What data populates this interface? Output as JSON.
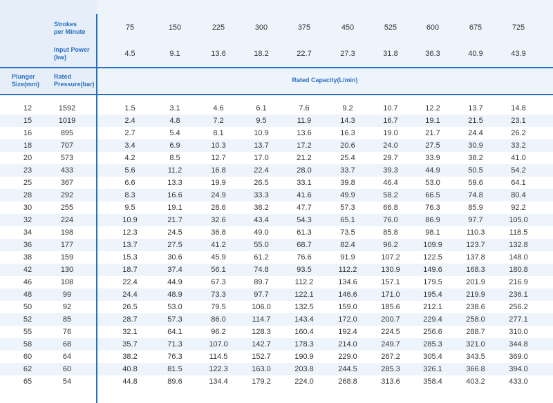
{
  "header": {
    "strokes_label": "Strokes\nper Minute",
    "input_power_label": "Input Power\n(kw)",
    "plunger_label": "Plunger\nSize(mm)",
    "pressure_label": "Rated\nPressure(bar)",
    "capacity_label": "Rated Capacity(L/min)",
    "strokes": [
      "75",
      "150",
      "225",
      "300",
      "375",
      "450",
      "525",
      "600",
      "675",
      "725"
    ],
    "power": [
      "4.5",
      "9.1",
      "13.6",
      "18.2",
      "22.7",
      "27.3",
      "31.8",
      "36.3",
      "40.9",
      "43.9"
    ]
  },
  "rows": [
    {
      "size": "12",
      "pressure": "1592",
      "cap": [
        "1.5",
        "3.1",
        "4.6",
        "6.1",
        "7.6",
        "9.2",
        "10.7",
        "12.2",
        "13.7",
        "14.8"
      ]
    },
    {
      "size": "15",
      "pressure": "1019",
      "cap": [
        "2.4",
        "4.8",
        "7.2",
        "9.5",
        "11.9",
        "14.3",
        "16.7",
        "19.1",
        "21.5",
        "23.1"
      ]
    },
    {
      "size": "16",
      "pressure": "895",
      "cap": [
        "2.7",
        "5.4",
        "8.1",
        "10.9",
        "13.6",
        "16.3",
        "19.0",
        "21.7",
        "24.4",
        "26.2"
      ]
    },
    {
      "size": "18",
      "pressure": "707",
      "cap": [
        "3.4",
        "6.9",
        "10.3",
        "13.7",
        "17.2",
        "20.6",
        "24.0",
        "27.5",
        "30.9",
        "33.2"
      ]
    },
    {
      "size": "20",
      "pressure": "573",
      "cap": [
        "4.2",
        "8.5",
        "12.7",
        "17.0",
        "21.2",
        "25.4",
        "29.7",
        "33.9",
        "38.2",
        "41.0"
      ]
    },
    {
      "size": "23",
      "pressure": "433",
      "cap": [
        "5.6",
        "11.2",
        "16.8",
        "22.4",
        "28.0",
        "33.7",
        "39.3",
        "44.9",
        "50.5",
        "54.2"
      ]
    },
    {
      "size": "25",
      "pressure": "367",
      "cap": [
        "6.6",
        "13.3",
        "19.9",
        "26.5",
        "33.1",
        "39.8",
        "46.4",
        "53.0",
        "59.6",
        "64.1"
      ]
    },
    {
      "size": "28",
      "pressure": "292",
      "cap": [
        "8.3",
        "16.6",
        "24.9",
        "33.3",
        "41.6",
        "49.9",
        "58.2",
        "66.5",
        "74.8",
        "80.4"
      ]
    },
    {
      "size": "30",
      "pressure": "255",
      "cap": [
        "9.5",
        "19.1",
        "28.6",
        "38.2",
        "47.7",
        "57.3",
        "66.8",
        "76.3",
        "85.9",
        "92.2"
      ]
    },
    {
      "size": "32",
      "pressure": "224",
      "cap": [
        "10.9",
        "21.7",
        "32.6",
        "43.4",
        "54.3",
        "65.1",
        "76.0",
        "86.9",
        "97.7",
        "105.0"
      ]
    },
    {
      "size": "34",
      "pressure": "198",
      "cap": [
        "12.3",
        "24.5",
        "36.8",
        "49.0",
        "61.3",
        "73.5",
        "85.8",
        "98.1",
        "110.3",
        "118.5"
      ]
    },
    {
      "size": "36",
      "pressure": "177",
      "cap": [
        "13.7",
        "27.5",
        "41.2",
        "55.0",
        "68.7",
        "82.4",
        "96.2",
        "109.9",
        "123.7",
        "132.8"
      ]
    },
    {
      "size": "38",
      "pressure": "159",
      "cap": [
        "15.3",
        "30.6",
        "45.9",
        "61.2",
        "76.6",
        "91.9",
        "107.2",
        "122.5",
        "137.8",
        "148.0"
      ]
    },
    {
      "size": "42",
      "pressure": "130",
      "cap": [
        "18.7",
        "37.4",
        "56.1",
        "74.8",
        "93.5",
        "112.2",
        "130.9",
        "149.6",
        "168.3",
        "180.8"
      ]
    },
    {
      "size": "46",
      "pressure": "108",
      "cap": [
        "22.4",
        "44.9",
        "67.3",
        "89.7",
        "112.2",
        "134.6",
        "157.1",
        "179.5",
        "201.9",
        "216.9"
      ]
    },
    {
      "size": "48",
      "pressure": "99",
      "cap": [
        "24.4",
        "48.9",
        "73.3",
        "97.7",
        "122.1",
        "146.6",
        "171.0",
        "195.4",
        "219.9",
        "236.1"
      ]
    },
    {
      "size": "50",
      "pressure": "92",
      "cap": [
        "26.5",
        "53.0",
        "79.5",
        "106.0",
        "132.5",
        "159.0",
        "185.6",
        "212.1",
        "238.6",
        "256.2"
      ]
    },
    {
      "size": "52",
      "pressure": "85",
      "cap": [
        "28.7",
        "57.3",
        "86.0",
        "114.7",
        "143.4",
        "172.0",
        "200.7",
        "229.4",
        "258.0",
        "277.1"
      ]
    },
    {
      "size": "55",
      "pressure": "76",
      "cap": [
        "32.1",
        "64.1",
        "96.2",
        "128.3",
        "160.4",
        "192.4",
        "224.5",
        "256.6",
        "288.7",
        "310.0"
      ]
    },
    {
      "size": "58",
      "pressure": "68",
      "cap": [
        "35.7",
        "71.3",
        "107.0",
        "142.7",
        "178.3",
        "214.0",
        "249.7",
        "285.3",
        "321.0",
        "344.8"
      ]
    },
    {
      "size": "60",
      "pressure": "64",
      "cap": [
        "38.2",
        "76.3",
        "114.5",
        "152.7",
        "190.9",
        "229.0",
        "267.2",
        "305.4",
        "343.5",
        "369.0"
      ]
    },
    {
      "size": "62",
      "pressure": "60",
      "cap": [
        "40.8",
        "81.5",
        "122.3",
        "163.0",
        "203.8",
        "244.5",
        "285.3",
        "326.1",
        "366.8",
        "394.0"
      ]
    },
    {
      "size": "65",
      "pressure": "54",
      "cap": [
        "44.8",
        "89.6",
        "134.4",
        "179.2",
        "224.0",
        "268.8",
        "313.6",
        "358.4",
        "403.2",
        "433.0"
      ]
    }
  ],
  "colors": {
    "accent": "#2a6fc0",
    "band": "#eef4fb"
  }
}
